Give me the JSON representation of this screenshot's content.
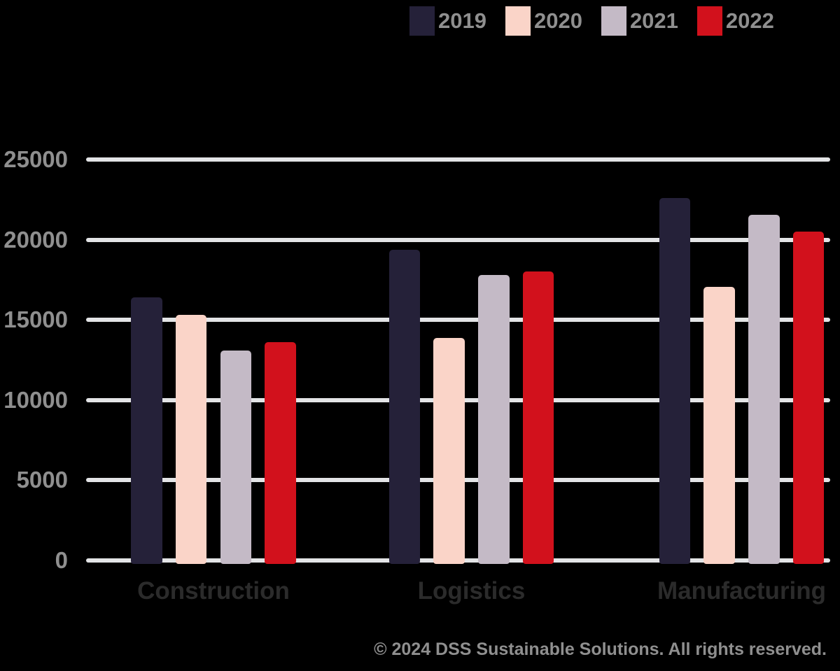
{
  "page": {
    "background_color": "#000000"
  },
  "footer": {
    "text": "© 2024 DSS Sustainable Solutions. All rights reserved."
  },
  "chart_data": {
    "type": "bar",
    "title": "",
    "categories": [
      "Construction",
      "Logistics",
      "Manufacturing"
    ],
    "series": [
      {
        "name": "2019",
        "color": "#252139",
        "values": [
          16400,
          19350,
          22600
        ]
      },
      {
        "name": "2020",
        "color": "#fad4c8",
        "values": [
          15300,
          13850,
          17050
        ]
      },
      {
        "name": "2021",
        "color": "#c4bac6",
        "values": [
          13100,
          17800,
          21550
        ]
      },
      {
        "name": "2022",
        "color": "#d2111c",
        "values": [
          13600,
          18000,
          20500
        ]
      }
    ],
    "ylim": [
      0,
      25000
    ],
    "yticks": [
      0,
      5000,
      10000,
      15000,
      20000,
      25000
    ],
    "ytick_labels": [
      "0",
      "5000",
      "10000",
      "15000",
      "20000",
      "25000"
    ],
    "grid": true,
    "legend_position": "top-right",
    "gridline_color": "#e3e4e6",
    "axis_text_color": "#8f8f8f",
    "category_text_color": "#2b2b2b"
  }
}
